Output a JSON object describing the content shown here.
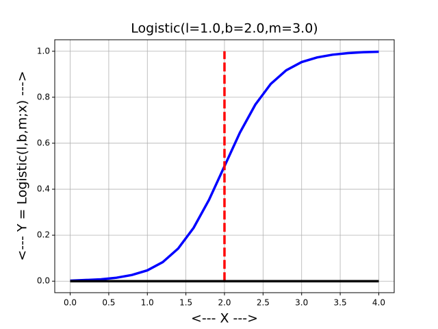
{
  "chart_data": {
    "type": "line",
    "title": "Logistic(l=1.0,b=2.0,m=3.0)",
    "x_label": "<--- X --->",
    "y_label": "<--- Y = Logistic(l,b,m;x) --->",
    "xlim": [
      -0.2,
      4.2
    ],
    "ylim": [
      -0.05,
      1.05
    ],
    "grid": true,
    "xticks": [
      {
        "value": 0,
        "label": "0.0"
      },
      {
        "value": 0.5,
        "label": "0.5"
      },
      {
        "value": 1,
        "label": "1.0"
      },
      {
        "value": 1.5,
        "label": "1.5"
      },
      {
        "value": 2,
        "label": "2.0"
      },
      {
        "value": 2.5,
        "label": "2.5"
      },
      {
        "value": 3,
        "label": "3.0"
      },
      {
        "value": 3.5,
        "label": "3.5"
      },
      {
        "value": 4,
        "label": "4.0"
      }
    ],
    "yticks": [
      {
        "value": 0,
        "label": "0.0"
      },
      {
        "value": 0.2,
        "label": "0.2"
      },
      {
        "value": 0.4,
        "label": "0.4"
      },
      {
        "value": 0.6,
        "label": "0.6"
      },
      {
        "value": 0.8,
        "label": "0.8"
      },
      {
        "value": 1,
        "label": "1.0"
      }
    ],
    "series": [
      {
        "color": "#0000ff",
        "style": "solid",
        "x": [
          0,
          0.2,
          0.4,
          0.6,
          0.8,
          1,
          1.2,
          1.4,
          1.6,
          1.8,
          2,
          2.2,
          2.4,
          2.6,
          2.8,
          3,
          3.2,
          3.4,
          3.6,
          3.8,
          4
        ],
        "values": [
          0.002,
          0.005,
          0.008,
          0.015,
          0.027,
          0.047,
          0.083,
          0.142,
          0.232,
          0.354,
          0.5,
          0.646,
          0.768,
          0.858,
          0.917,
          0.953,
          0.973,
          0.985,
          0.992,
          0.996,
          0.998
        ]
      },
      {
        "color": "#ff0000",
        "style": "dashed",
        "x": [
          2,
          2
        ],
        "values": [
          0,
          1
        ]
      },
      {
        "color": "#000000",
        "style": "solid",
        "x": [
          0,
          4
        ],
        "values": [
          0,
          0
        ]
      }
    ]
  }
}
